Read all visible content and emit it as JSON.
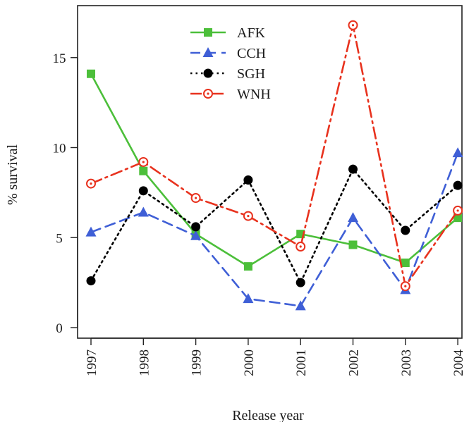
{
  "chart_data": {
    "type": "line",
    "title": "",
    "xlabel": "Release year",
    "ylabel": "% survival",
    "categories": [
      "1997",
      "1998",
      "1999",
      "2000",
      "2001",
      "2002",
      "2003",
      "2004"
    ],
    "ylim": [
      0,
      17
    ],
    "yticks": [
      0,
      5,
      10,
      15
    ],
    "grid": false,
    "legend_position": "top-center",
    "series": [
      {
        "name": "AFK",
        "color": "#4cbf3a",
        "marker": "square",
        "line": "solid",
        "values": [
          14.1,
          8.7,
          5.2,
          3.4,
          5.2,
          4.6,
          3.6,
          6.1
        ]
      },
      {
        "name": "CCH",
        "color": "#3f5fd6",
        "marker": "triangle",
        "line": "dashed",
        "values": [
          5.3,
          6.4,
          5.1,
          1.6,
          1.2,
          6.1,
          2.1,
          9.7
        ]
      },
      {
        "name": "SGH",
        "color": "#000000",
        "marker": "filled-circle",
        "line": "dotted",
        "values": [
          2.6,
          7.6,
          5.6,
          8.2,
          2.5,
          8.8,
          5.4,
          7.9
        ]
      },
      {
        "name": "WNH",
        "color": "#e8321e",
        "marker": "open-circle",
        "line": "dotdash",
        "values": [
          8.0,
          9.2,
          7.2,
          6.2,
          4.5,
          16.8,
          2.3,
          6.5
        ]
      }
    ]
  }
}
